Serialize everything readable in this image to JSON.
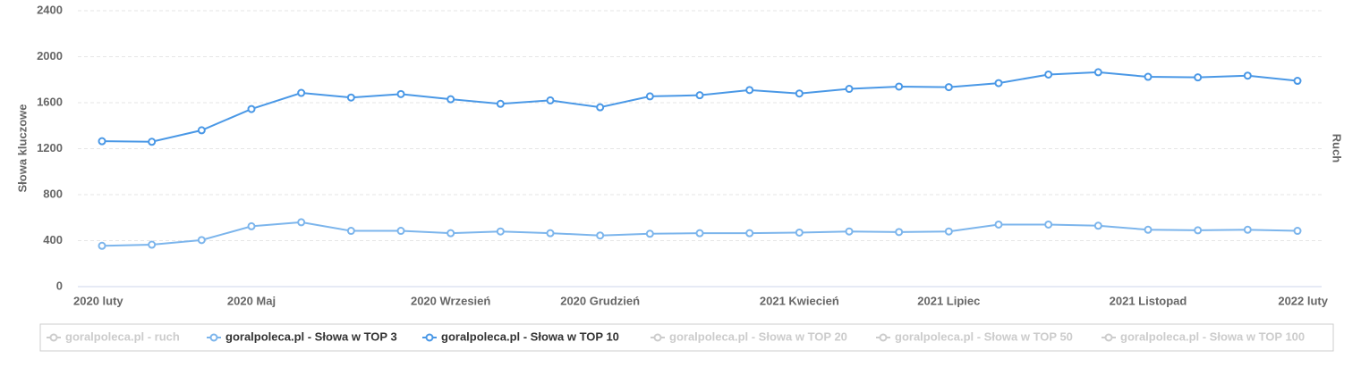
{
  "chart_data": {
    "type": "line",
    "y_title": "Słowa kluczowe",
    "y2_title": "Ruch",
    "categories": [
      "2020 luty",
      null,
      null,
      "2020 Maj",
      null,
      null,
      null,
      "2020 Wrzesień",
      null,
      null,
      "2020 Grudzień",
      null,
      null,
      null,
      "2021 Kwiecień",
      null,
      null,
      "2021 Lipiec",
      null,
      null,
      null,
      "2021 Listopad",
      null,
      null,
      "2022 luty"
    ],
    "ylim": [
      0,
      2400
    ],
    "yticks": [
      0,
      400,
      800,
      1200,
      1600,
      2000,
      2400
    ],
    "grid": true,
    "series": [
      {
        "name": "goralpoleca.pl - ruch",
        "color": "#cccccc",
        "visible": false,
        "values": [
          null,
          null,
          null,
          null,
          null,
          null,
          null,
          null,
          null,
          null,
          null,
          null,
          null,
          null,
          null,
          null,
          null,
          null,
          null,
          null,
          null,
          null,
          null,
          null,
          null
        ]
      },
      {
        "name": "goralpoleca.pl - Słowa w TOP 3",
        "color": "#7cb5ec",
        "visible": true,
        "values": [
          355,
          365,
          405,
          525,
          560,
          485,
          485,
          465,
          480,
          465,
          445,
          460,
          465,
          465,
          470,
          480,
          475,
          480,
          540,
          540,
          530,
          495,
          490,
          495,
          485
        ]
      },
      {
        "name": "goralpoleca.pl - Słowa w TOP 10",
        "color": "#4a98e6",
        "visible": true,
        "values": [
          1265,
          1260,
          1360,
          1545,
          1685,
          1645,
          1675,
          1630,
          1590,
          1620,
          1560,
          1655,
          1665,
          1710,
          1680,
          1720,
          1740,
          1735,
          1770,
          1845,
          1865,
          1825,
          1820,
          1835,
          1790
        ]
      },
      {
        "name": "goralpoleca.pl - Słowa w TOP 20",
        "color": "#cccccc",
        "visible": false,
        "values": [
          null,
          null,
          null,
          null,
          null,
          null,
          null,
          null,
          null,
          null,
          null,
          null,
          null,
          null,
          null,
          null,
          null,
          null,
          null,
          null,
          null,
          null,
          null,
          null,
          null
        ]
      },
      {
        "name": "goralpoleca.pl - Słowa w TOP 50",
        "color": "#cccccc",
        "visible": false,
        "values": [
          null,
          null,
          null,
          null,
          null,
          null,
          null,
          null,
          null,
          null,
          null,
          null,
          null,
          null,
          null,
          null,
          null,
          null,
          null,
          null,
          null,
          null,
          null,
          null,
          null
        ]
      },
      {
        "name": "goralpoleca.pl - Słowa w TOP 100",
        "color": "#cccccc",
        "visible": false,
        "values": [
          null,
          null,
          null,
          null,
          null,
          null,
          null,
          null,
          null,
          null,
          null,
          null,
          null,
          null,
          null,
          null,
          null,
          null,
          null,
          null,
          null,
          null,
          null,
          null,
          null
        ]
      }
    ]
  }
}
